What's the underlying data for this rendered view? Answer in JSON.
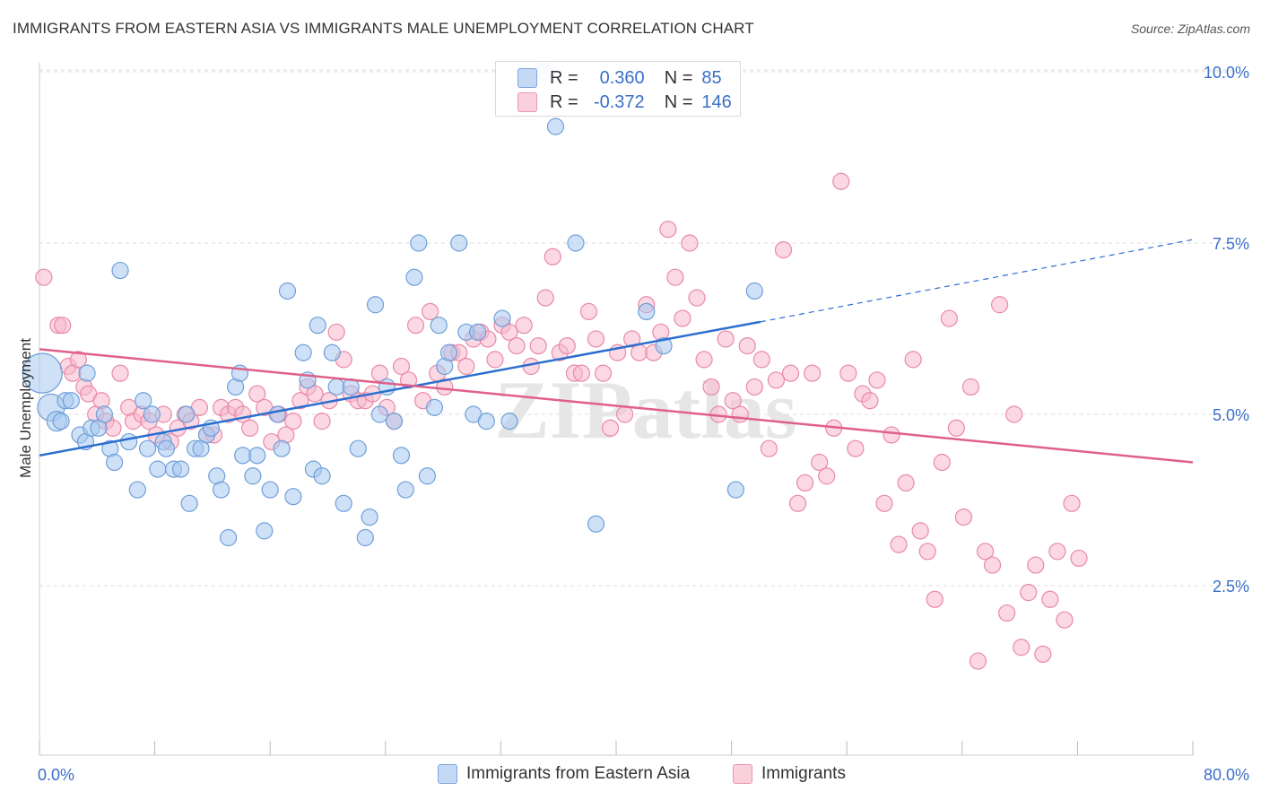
{
  "title": "IMMIGRANTS FROM EASTERN ASIA VS IMMIGRANTS MALE UNEMPLOYMENT CORRELATION CHART",
  "source": "Source: ZipAtlas.com",
  "watermark": "ZIPatlas",
  "legend_stats": [
    {
      "r_label": "R =",
      "r_value": "0.360",
      "n_label": "N =",
      "n_value": "85",
      "color": "#a8c8f0"
    },
    {
      "r_label": "R =",
      "r_value": "-0.372",
      "n_label": "N =",
      "n_value": "146",
      "color": "#f7b8cc"
    }
  ],
  "legend_bottom": [
    {
      "label": "Immigrants from Eastern Asia",
      "color": "#a8c8f0"
    },
    {
      "label": "Immigrants",
      "color": "#f7b8cc"
    }
  ],
  "colors": {
    "blue_fill": "#a8c8f0",
    "blue_stroke": "#6f9fd8",
    "blue_line": "#2c6fcf",
    "pink_fill": "#f7b8cc",
    "pink_stroke": "#e88aa8",
    "pink_line": "#e0608a",
    "axis_label": "#3a6fc7",
    "grid": "#dddddd"
  },
  "chart_data": {
    "type": "scatter",
    "xlabel": "",
    "ylabel": "Male Unemployment",
    "xlim": [
      0,
      80
    ],
    "ylim": [
      0,
      10.5
    ],
    "x_tick_labels": [
      "0.0%",
      "80.0%"
    ],
    "y_tick_labels": [
      "2.5%",
      "5.0%",
      "7.5%",
      "10.0%"
    ],
    "y_ticks": [
      2.5,
      5.0,
      7.5,
      10.0
    ],
    "grid": "horizontal dashed",
    "series": [
      {
        "name": "Immigrants from Eastern Asia",
        "trend": {
          "x": [
            0,
            50
          ],
          "y": [
            4.4,
            6.35
          ],
          "dashed_to": [
            80,
            7.55
          ]
        },
        "points": [
          [
            0.2,
            5.6
          ],
          [
            0.8,
            5.1
          ],
          [
            1.2,
            4.9
          ],
          [
            1.5,
            4.9
          ],
          [
            1.8,
            5.2
          ],
          [
            2.2,
            5.2
          ],
          [
            2.8,
            4.7
          ],
          [
            3.2,
            4.6
          ],
          [
            3.3,
            5.6
          ],
          [
            3.6,
            4.8
          ],
          [
            4.1,
            4.8
          ],
          [
            4.5,
            5.0
          ],
          [
            4.9,
            4.5
          ],
          [
            5.2,
            4.3
          ],
          [
            5.6,
            7.1
          ],
          [
            6.2,
            4.6
          ],
          [
            6.8,
            3.9
          ],
          [
            7.2,
            5.2
          ],
          [
            7.5,
            4.5
          ],
          [
            7.8,
            5.0
          ],
          [
            8.2,
            4.2
          ],
          [
            8.6,
            4.6
          ],
          [
            8.8,
            4.5
          ],
          [
            9.3,
            4.2
          ],
          [
            9.8,
            4.2
          ],
          [
            10.2,
            5.0
          ],
          [
            10.4,
            3.7
          ],
          [
            10.8,
            4.5
          ],
          [
            11.2,
            4.5
          ],
          [
            11.6,
            4.7
          ],
          [
            11.9,
            4.8
          ],
          [
            12.3,
            4.1
          ],
          [
            12.6,
            3.9
          ],
          [
            13.1,
            3.2
          ],
          [
            13.6,
            5.4
          ],
          [
            13.9,
            5.6
          ],
          [
            14.1,
            4.4
          ],
          [
            14.8,
            4.1
          ],
          [
            15.1,
            4.4
          ],
          [
            15.6,
            3.3
          ],
          [
            16.0,
            3.9
          ],
          [
            16.5,
            5.0
          ],
          [
            16.8,
            4.5
          ],
          [
            17.2,
            6.8
          ],
          [
            17.6,
            3.8
          ],
          [
            18.3,
            5.9
          ],
          [
            18.6,
            5.5
          ],
          [
            19.0,
            4.2
          ],
          [
            19.3,
            6.3
          ],
          [
            19.6,
            4.1
          ],
          [
            20.3,
            5.9
          ],
          [
            20.6,
            5.4
          ],
          [
            21.1,
            3.7
          ],
          [
            21.6,
            5.4
          ],
          [
            22.1,
            4.5
          ],
          [
            22.6,
            3.2
          ],
          [
            22.9,
            3.5
          ],
          [
            23.3,
            6.6
          ],
          [
            23.6,
            5.0
          ],
          [
            24.1,
            5.4
          ],
          [
            24.6,
            4.9
          ],
          [
            25.1,
            4.4
          ],
          [
            25.4,
            3.9
          ],
          [
            26.0,
            7.0
          ],
          [
            26.3,
            7.5
          ],
          [
            26.9,
            4.1
          ],
          [
            27.4,
            5.1
          ],
          [
            27.7,
            6.3
          ],
          [
            28.1,
            5.7
          ],
          [
            28.4,
            5.9
          ],
          [
            29.1,
            7.5
          ],
          [
            29.6,
            6.2
          ],
          [
            30.1,
            5.0
          ],
          [
            30.4,
            6.2
          ],
          [
            31.0,
            4.9
          ],
          [
            32.1,
            6.4
          ],
          [
            32.6,
            4.9
          ],
          [
            35.8,
            9.2
          ],
          [
            37.2,
            7.5
          ],
          [
            38.6,
            3.4
          ],
          [
            42.1,
            6.5
          ],
          [
            43.3,
            6.0
          ],
          [
            48.3,
            3.9
          ],
          [
            49.6,
            6.8
          ],
          [
            35.0,
            10.0
          ]
        ]
      },
      {
        "name": "Immigrants",
        "trend": {
          "x": [
            0,
            80
          ],
          "y": [
            5.95,
            4.3
          ]
        },
        "points": [
          [
            0.3,
            7.0
          ],
          [
            1.3,
            6.3
          ],
          [
            1.6,
            6.3
          ],
          [
            2.0,
            5.7
          ],
          [
            2.3,
            5.6
          ],
          [
            2.7,
            5.8
          ],
          [
            3.1,
            5.4
          ],
          [
            3.4,
            5.3
          ],
          [
            3.9,
            5.0
          ],
          [
            4.3,
            5.2
          ],
          [
            4.6,
            4.9
          ],
          [
            5.1,
            4.8
          ],
          [
            5.6,
            5.6
          ],
          [
            6.2,
            5.1
          ],
          [
            6.5,
            4.9
          ],
          [
            7.1,
            5.0
          ],
          [
            7.6,
            4.9
          ],
          [
            8.1,
            4.7
          ],
          [
            8.6,
            5.0
          ],
          [
            9.1,
            4.6
          ],
          [
            9.6,
            4.8
          ],
          [
            10.1,
            5.0
          ],
          [
            10.5,
            4.9
          ],
          [
            11.1,
            5.1
          ],
          [
            11.6,
            4.7
          ],
          [
            12.1,
            4.7
          ],
          [
            12.6,
            5.1
          ],
          [
            13.1,
            5.0
          ],
          [
            13.6,
            5.1
          ],
          [
            14.1,
            5.0
          ],
          [
            14.6,
            4.8
          ],
          [
            15.1,
            5.3
          ],
          [
            15.6,
            5.1
          ],
          [
            16.1,
            4.6
          ],
          [
            16.6,
            5.0
          ],
          [
            17.1,
            4.7
          ],
          [
            17.6,
            4.9
          ],
          [
            18.1,
            5.2
          ],
          [
            18.6,
            5.4
          ],
          [
            19.1,
            5.3
          ],
          [
            19.6,
            4.9
          ],
          [
            20.1,
            5.2
          ],
          [
            20.6,
            6.2
          ],
          [
            21.1,
            5.8
          ],
          [
            21.6,
            5.3
          ],
          [
            22.1,
            5.2
          ],
          [
            22.6,
            5.2
          ],
          [
            23.1,
            5.3
          ],
          [
            23.6,
            5.6
          ],
          [
            24.1,
            5.1
          ],
          [
            24.6,
            4.9
          ],
          [
            25.1,
            5.7
          ],
          [
            25.6,
            5.5
          ],
          [
            26.1,
            6.3
          ],
          [
            26.6,
            5.2
          ],
          [
            27.1,
            6.5
          ],
          [
            27.6,
            5.6
          ],
          [
            28.1,
            5.4
          ],
          [
            28.6,
            5.9
          ],
          [
            29.1,
            5.9
          ],
          [
            29.6,
            5.7
          ],
          [
            30.1,
            6.1
          ],
          [
            30.6,
            6.2
          ],
          [
            31.1,
            6.1
          ],
          [
            31.6,
            5.8
          ],
          [
            32.1,
            6.3
          ],
          [
            32.6,
            6.2
          ],
          [
            33.1,
            6.0
          ],
          [
            33.6,
            6.3
          ],
          [
            34.1,
            5.7
          ],
          [
            34.6,
            6.0
          ],
          [
            35.1,
            6.7
          ],
          [
            35.6,
            7.3
          ],
          [
            36.1,
            5.9
          ],
          [
            36.6,
            6.0
          ],
          [
            37.1,
            5.6
          ],
          [
            37.6,
            5.6
          ],
          [
            38.1,
            6.5
          ],
          [
            38.6,
            6.1
          ],
          [
            39.1,
            5.6
          ],
          [
            39.6,
            4.8
          ],
          [
            40.1,
            5.9
          ],
          [
            40.6,
            5.0
          ],
          [
            41.1,
            6.1
          ],
          [
            41.6,
            5.9
          ],
          [
            42.1,
            6.6
          ],
          [
            42.6,
            5.9
          ],
          [
            43.1,
            6.2
          ],
          [
            43.6,
            7.7
          ],
          [
            44.1,
            7.0
          ],
          [
            44.6,
            6.4
          ],
          [
            45.1,
            7.5
          ],
          [
            45.6,
            6.7
          ],
          [
            46.1,
            5.8
          ],
          [
            46.6,
            5.4
          ],
          [
            47.1,
            5.0
          ],
          [
            47.6,
            6.1
          ],
          [
            48.1,
            5.2
          ],
          [
            48.6,
            5.0
          ],
          [
            49.1,
            6.0
          ],
          [
            49.6,
            5.4
          ],
          [
            50.1,
            5.8
          ],
          [
            50.6,
            4.5
          ],
          [
            51.1,
            5.5
          ],
          [
            51.6,
            7.4
          ],
          [
            52.1,
            5.6
          ],
          [
            52.6,
            3.7
          ],
          [
            53.1,
            4.0
          ],
          [
            53.6,
            5.6
          ],
          [
            54.1,
            4.3
          ],
          [
            54.6,
            4.1
          ],
          [
            55.1,
            4.8
          ],
          [
            55.6,
            8.4
          ],
          [
            56.1,
            5.6
          ],
          [
            56.6,
            4.5
          ],
          [
            57.1,
            5.3
          ],
          [
            57.6,
            5.2
          ],
          [
            58.1,
            5.5
          ],
          [
            58.6,
            3.7
          ],
          [
            59.1,
            4.7
          ],
          [
            59.6,
            3.1
          ],
          [
            60.1,
            4.0
          ],
          [
            60.6,
            5.8
          ],
          [
            61.1,
            3.3
          ],
          [
            61.6,
            3.0
          ],
          [
            62.1,
            2.3
          ],
          [
            62.6,
            4.3
          ],
          [
            63.1,
            6.4
          ],
          [
            63.6,
            4.8
          ],
          [
            64.1,
            3.5
          ],
          [
            64.6,
            5.4
          ],
          [
            65.1,
            1.4
          ],
          [
            65.6,
            3.0
          ],
          [
            66.1,
            2.8
          ],
          [
            66.6,
            6.6
          ],
          [
            67.1,
            2.1
          ],
          [
            67.6,
            5.0
          ],
          [
            68.1,
            1.6
          ],
          [
            68.6,
            2.4
          ],
          [
            69.1,
            2.8
          ],
          [
            69.6,
            1.5
          ],
          [
            70.1,
            2.3
          ],
          [
            70.6,
            3.0
          ],
          [
            71.1,
            2.0
          ],
          [
            71.6,
            3.7
          ],
          [
            72.1,
            2.9
          ]
        ]
      }
    ]
  }
}
